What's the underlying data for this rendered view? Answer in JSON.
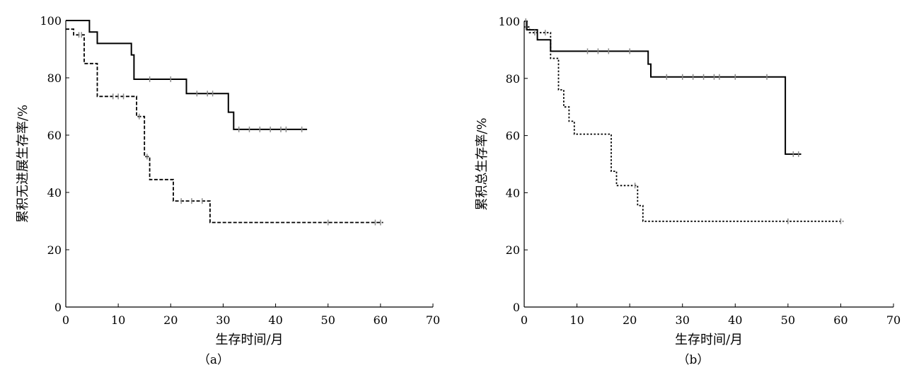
{
  "chart_data": [
    {
      "type": "line",
      "subtype": "kaplan-meier-step",
      "panel_label": "（a）",
      "xlabel": "生存时间/月",
      "ylabel": "累积无进展生存率/%",
      "xlim": [
        0,
        70
      ],
      "ylim": [
        0,
        100
      ],
      "xticks": [
        "0",
        "10",
        "20",
        "30",
        "40",
        "50",
        "60",
        "70"
      ],
      "yticks": [
        "0",
        "20",
        "40",
        "60",
        "80",
        "100"
      ],
      "grid": false,
      "legend": "none",
      "series": [
        {
          "style": "solid",
          "x": [
            0,
            4.5,
            6,
            12.5,
            13,
            23,
            31,
            32,
            46
          ],
          "y": [
            100,
            96,
            92,
            88,
            79.5,
            74.5,
            68,
            62,
            62
          ],
          "censored_x": [
            16,
            20,
            25,
            27,
            28,
            33,
            35,
            37,
            39,
            41,
            42,
            45
          ]
        },
        {
          "style": "dashed",
          "x": [
            0,
            1.5,
            3.5,
            6,
            13.5,
            15,
            16,
            20.5,
            27.5,
            60.5
          ],
          "y": [
            97,
            95,
            85,
            73.5,
            66.5,
            52.5,
            44.5,
            37,
            29.5,
            29.5
          ],
          "censored_x": [
            2.5,
            3,
            9,
            10,
            11,
            14,
            15.5,
            22,
            24,
            26,
            50,
            59,
            60
          ]
        }
      ]
    },
    {
      "type": "line",
      "subtype": "kaplan-meier-step",
      "panel_label": "（b）",
      "xlabel": "生存时间/月",
      "ylabel": "累积总生存率/%",
      "xlim": [
        0,
        70
      ],
      "ylim": [
        0,
        100
      ],
      "xticks": [
        "0",
        "10",
        "20",
        "30",
        "40",
        "50",
        "60",
        "70"
      ],
      "yticks": [
        "0",
        "20",
        "40",
        "60",
        "80",
        "100"
      ],
      "grid": false,
      "legend": "none",
      "series": [
        {
          "style": "solid",
          "x": [
            0,
            0.5,
            2.5,
            5,
            23.5,
            24,
            49.5,
            52.5
          ],
          "y": [
            100,
            97,
            93.5,
            89.5,
            85,
            80.5,
            53.5,
            53.5
          ],
          "censored_x": [
            0.3,
            12,
            14,
            16,
            20,
            27,
            30,
            32,
            34,
            36,
            37,
            40,
            46,
            51,
            52
          ]
        },
        {
          "style": "dotted",
          "x": [
            0,
            1,
            5,
            6.5,
            7.5,
            8.5,
            9.5,
            16.5,
            17.5,
            21.5,
            22.5,
            60.5
          ],
          "y": [
            98,
            96,
            87,
            76,
            70,
            65,
            60.5,
            47.5,
            42.5,
            35.5,
            30,
            30
          ],
          "censored_x": [
            0.3,
            2,
            4,
            21,
            50,
            60
          ]
        }
      ]
    }
  ]
}
